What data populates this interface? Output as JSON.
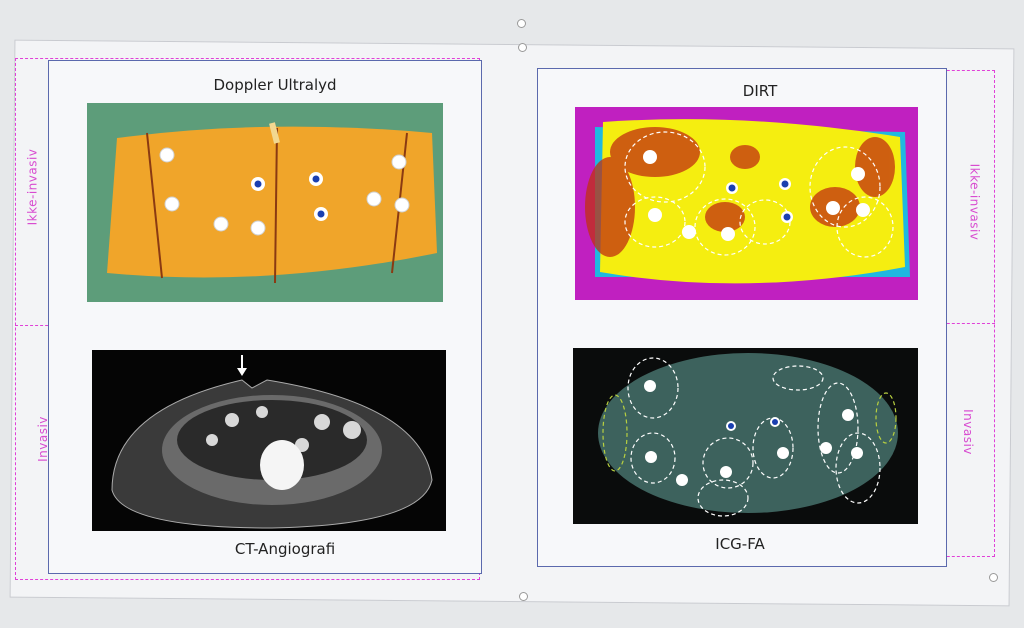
{
  "panels": {
    "top_left": {
      "title": "Doppler Ultralyd"
    },
    "top_right": {
      "title": "DIRT"
    },
    "bottom_left": {
      "title": "CT-Angiografi"
    },
    "bottom_right": {
      "title": "ICG-FA"
    }
  },
  "side_labels": {
    "left_top": "Ikke-invasiv",
    "left_bottom": "Invasiv",
    "right_top": "Ikke-invasiv",
    "right_bottom": "Invasiv"
  },
  "colors": {
    "panel_border": "#5b69ad",
    "dashed_guides": "#e040d8"
  }
}
